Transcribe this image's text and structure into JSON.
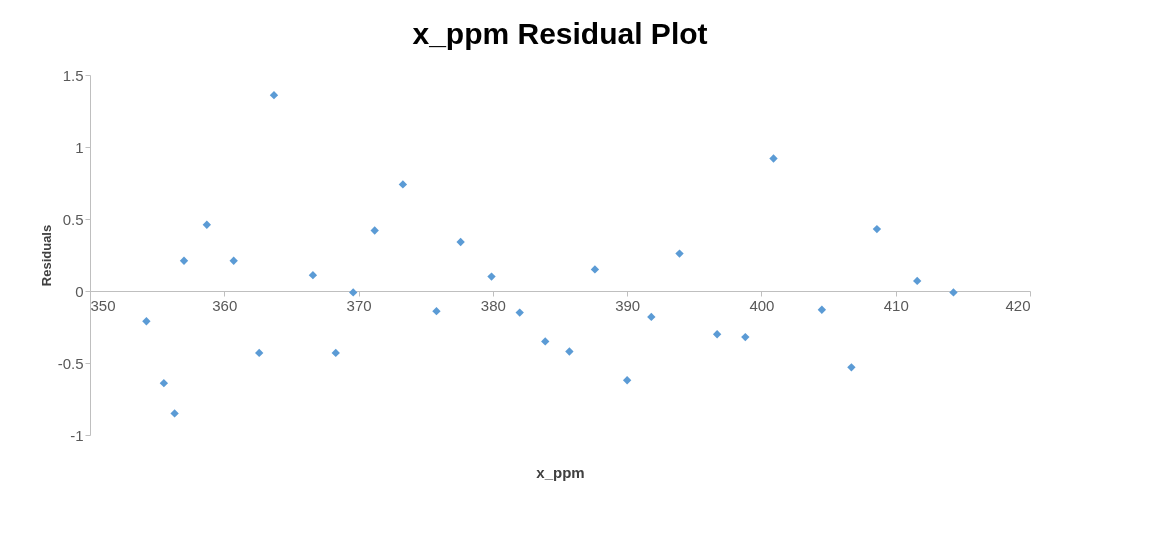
{
  "chart_data": {
    "type": "scatter",
    "title": "x_ppm  Residual Plot",
    "xlabel": "x_ppm",
    "ylabel": "Residuals",
    "x": [
      354.2,
      355.5,
      356.3,
      357.0,
      358.7,
      360.7,
      362.6,
      363.7,
      366.6,
      368.3,
      369.6,
      371.2,
      373.3,
      375.8,
      377.6,
      379.9,
      382.0,
      383.9,
      385.7,
      387.6,
      390.0,
      391.8,
      393.9,
      396.7,
      398.8,
      400.9,
      404.5,
      406.7,
      408.6,
      411.6,
      414.3
    ],
    "series": [
      {
        "color": "#5b9bd5",
        "values": [
          -0.21,
          -0.64,
          -0.85,
          0.21,
          0.46,
          0.21,
          -0.43,
          1.36,
          0.11,
          -0.43,
          -0.01,
          0.42,
          0.74,
          -0.14,
          0.34,
          0.1,
          -0.15,
          -0.35,
          -0.42,
          0.15,
          -0.62,
          -0.18,
          0.26,
          -0.3,
          -0.32,
          0.92,
          -0.13,
          -0.53,
          0.43,
          0.07,
          -0.01
        ]
      }
    ],
    "xlim": [
      350,
      420
    ],
    "xticks": [
      350,
      360,
      370,
      380,
      390,
      400,
      410,
      420
    ],
    "ylim": [
      -1,
      1.5
    ],
    "yticks": [
      -1,
      -0.5,
      0,
      0.5,
      1,
      1.5
    ],
    "marker": "diamond",
    "grid": false
  }
}
